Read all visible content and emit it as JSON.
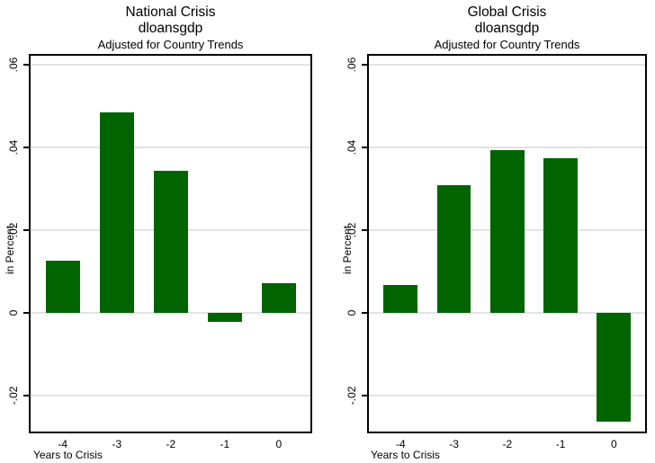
{
  "page": {
    "background": "#ffffff"
  },
  "chart_data": [
    {
      "type": "bar",
      "title": "National Crisis",
      "title_line2": "dloansgdp",
      "subtitle": "Adjusted for Country Trends",
      "xlabel": "Years to Crisis",
      "ylabel": "in Percent",
      "categories": [
        "-4",
        "-3",
        "-2",
        "-1",
        "0"
      ],
      "values": [
        0.0127,
        0.0484,
        0.0343,
        -0.0021,
        0.0072
      ],
      "ylim": [
        -0.0286,
        0.0621
      ],
      "yticks": [
        {
          "v": 0.06,
          "label": ".06"
        },
        {
          "v": 0.04,
          "label": ".04"
        },
        {
          "v": 0.02,
          "label": ".02"
        },
        {
          "v": 0.0,
          "label": "0"
        },
        {
          "v": -0.02,
          "label": "-.02"
        }
      ],
      "grid": true,
      "legend": "none",
      "bar_color": "#006400",
      "grid_color": "#e3e3e3",
      "axis_color": "#000000"
    },
    {
      "type": "bar",
      "title": "Global Crisis",
      "title_line2": "dloansgdp",
      "subtitle": "Adjusted for Country Trends",
      "xlabel": "Years to Crisis",
      "ylabel": "in Percent",
      "categories": [
        "-4",
        "-3",
        "-2",
        "-1",
        "0"
      ],
      "values": [
        0.0068,
        0.0309,
        0.0394,
        0.0374,
        -0.0263
      ],
      "ylim": [
        -0.0286,
        0.0621
      ],
      "yticks": [
        {
          "v": 0.06,
          "label": ".06"
        },
        {
          "v": 0.04,
          "label": ".04"
        },
        {
          "v": 0.02,
          "label": ".02"
        },
        {
          "v": 0.0,
          "label": "0"
        },
        {
          "v": -0.02,
          "label": "-.02"
        }
      ],
      "grid": true,
      "legend": "none",
      "bar_color": "#006400",
      "grid_color": "#e3e3e3",
      "axis_color": "#000000"
    }
  ]
}
